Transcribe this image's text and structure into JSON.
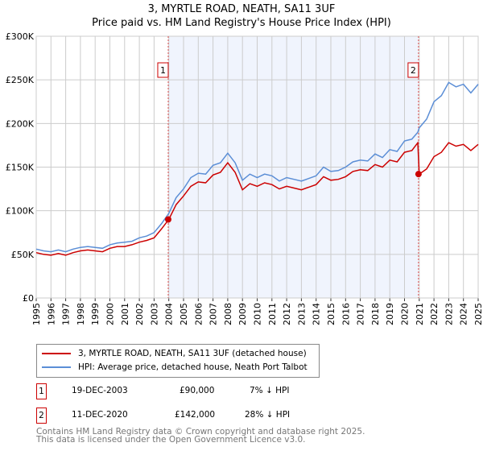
{
  "title_line1": "3, MYRTLE ROAD, NEATH, SA11 3UF",
  "title_line2": "Price paid vs. HM Land Registry's House Price Index (HPI)",
  "chart_data": {
    "type": "line",
    "title": "3, MYRTLE ROAD, NEATH, SA11 3UF — Price paid vs. HM Land Registry's House Price Index (HPI)",
    "xlim": [
      1995,
      2025
    ],
    "ylim": [
      0,
      300000
    ],
    "yticks": [
      {
        "v": 0,
        "label": "£0"
      },
      {
        "v": 50000,
        "label": "£50K"
      },
      {
        "v": 100000,
        "label": "£100K"
      },
      {
        "v": 150000,
        "label": "£150K"
      },
      {
        "v": 200000,
        "label": "£200K"
      },
      {
        "v": 250000,
        "label": "£250K"
      },
      {
        "v": 300000,
        "label": "£300K"
      }
    ],
    "xticks": [
      "1995",
      "1996",
      "1997",
      "1998",
      "1999",
      "2000",
      "2001",
      "2002",
      "2003",
      "2004",
      "2005",
      "2006",
      "2007",
      "2008",
      "2009",
      "2010",
      "2011",
      "2012",
      "2013",
      "2014",
      "2015",
      "2016",
      "2017",
      "2018",
      "2019",
      "2020",
      "2021",
      "2022",
      "2023",
      "2024",
      "2025"
    ],
    "grid": true,
    "shaded_range": [
      2003.96,
      2020.95
    ],
    "x": [
      1995,
      1995.5,
      1996,
      1996.5,
      1997,
      1997.5,
      1998,
      1998.5,
      1999,
      1999.5,
      2000,
      2000.5,
      2001,
      2001.5,
      2002,
      2002.5,
      2003,
      2003.5,
      2004,
      2004.5,
      2005,
      2005.5,
      2006,
      2006.5,
      2007,
      2007.5,
      2008,
      2008.5,
      2009,
      2009.5,
      2010,
      2010.5,
      2011,
      2011.5,
      2012,
      2012.5,
      2013,
      2013.5,
      2014,
      2014.5,
      2015,
      2015.5,
      2016,
      2016.5,
      2017,
      2017.5,
      2018,
      2018.5,
      2019,
      2019.5,
      2020,
      2020.5,
      2020.9,
      2021,
      2021.5,
      2022,
      2022.5,
      2023,
      2023.5,
      2024,
      2024.5,
      2025
    ],
    "series": [
      {
        "name": "3, MYRTLE ROAD, NEATH, SA11 3UF (detached house)",
        "color": "#cc0000",
        "values": [
          52000,
          50000,
          49000,
          51000,
          49000,
          52000,
          54000,
          55000,
          54000,
          53000,
          57000,
          59000,
          59000,
          61000,
          64000,
          66000,
          69000,
          79000,
          90000,
          107000,
          117000,
          128000,
          133000,
          132000,
          141000,
          144000,
          155000,
          144000,
          124000,
          131000,
          128000,
          132000,
          130000,
          125000,
          128000,
          126000,
          124000,
          127000,
          130000,
          139000,
          135000,
          136000,
          139000,
          145000,
          147000,
          146000,
          153000,
          150000,
          158000,
          156000,
          167000,
          169000,
          178000,
          142000,
          148000,
          162000,
          167000,
          178000,
          174000,
          176000,
          169000,
          176000
        ]
      },
      {
        "name": "HPI: Average price, detached house, Neath Port Talbot",
        "color": "#5b8ed6",
        "values": [
          56000,
          54000,
          53000,
          55000,
          53000,
          56000,
          58000,
          59000,
          58000,
          57000,
          61000,
          63000,
          64000,
          65000,
          69000,
          71000,
          75000,
          85000,
          97000,
          115000,
          125000,
          138000,
          143000,
          142000,
          152000,
          155000,
          166000,
          155000,
          135000,
          142000,
          138000,
          142000,
          140000,
          134000,
          138000,
          136000,
          134000,
          137000,
          140000,
          150000,
          145000,
          146000,
          150000,
          156000,
          158000,
          157000,
          165000,
          161000,
          170000,
          168000,
          180000,
          182000,
          190000,
          195000,
          205000,
          225000,
          232000,
          247000,
          242000,
          245000,
          235000,
          245000
        ]
      }
    ],
    "annotations": [
      {
        "label": "1",
        "x": 2003.96,
        "y": 90000
      },
      {
        "label": "2",
        "x": 2020.95,
        "y": 142000
      }
    ]
  },
  "legend": [
    {
      "label": "3, MYRTLE ROAD, NEATH, SA11 3UF (detached house)",
      "color": "#cc0000"
    },
    {
      "label": "HPI: Average price, detached house, Neath Port Talbot",
      "color": "#5b8ed6"
    }
  ],
  "sales": [
    {
      "num": "1",
      "date": "19-DEC-2003",
      "price": "£90,000",
      "diff": "7% ↓ HPI"
    },
    {
      "num": "2",
      "date": "11-DEC-2020",
      "price": "£142,000",
      "diff": "28% ↓ HPI"
    }
  ],
  "footer_line1": "Contains HM Land Registry data © Crown copyright and database right 2025.",
  "footer_line2": "This data is licensed under the Open Government Licence v3.0."
}
